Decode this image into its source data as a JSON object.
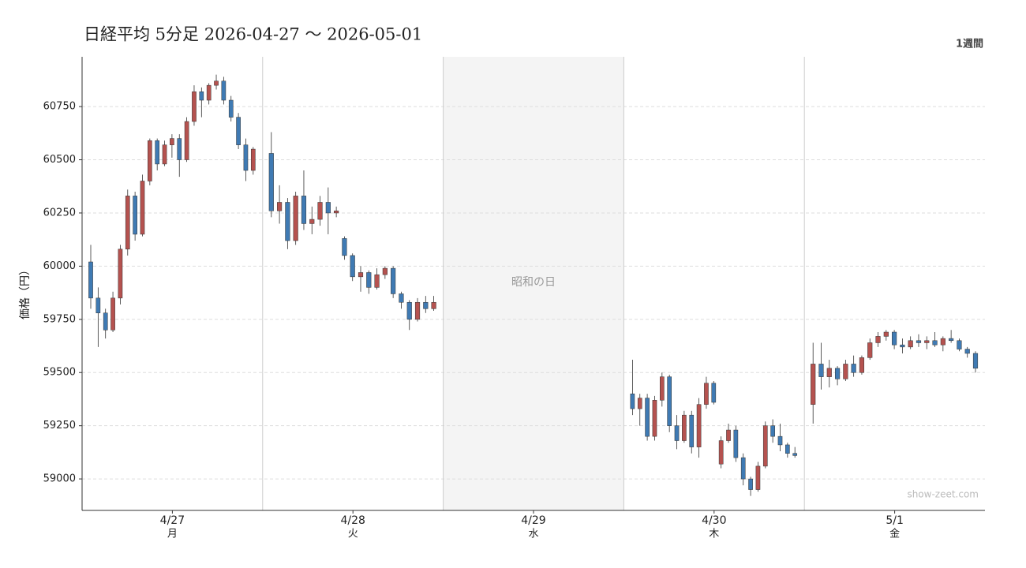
{
  "chart_data": {
    "type": "candlestick",
    "title": "日経平均 5分足  2026-04-27 〜 2026-05-01",
    "period": "1週間",
    "ylabel": "価格（円）",
    "watermark": "show-zeet.com",
    "ylim": [
      58852,
      60984
    ],
    "yticks": [
      59000,
      59250,
      59500,
      59750,
      60000,
      60250,
      60500,
      60750
    ],
    "grid": true,
    "up_color": "#b5524f",
    "down_color": "#3f7ab3",
    "days": [
      {
        "label": "4/27",
        "weekday": "月",
        "candles": {
          "open": [
            60020,
            59850,
            59780,
            59700,
            59850,
            60080,
            60330,
            60150,
            60400,
            60590,
            60480,
            60570,
            60600,
            60500,
            60680,
            60820,
            60780,
            60850,
            60870,
            60780,
            60700,
            60570,
            60450
          ],
          "high": [
            60100,
            59900,
            59800,
            59880,
            60100,
            60360,
            60350,
            60430,
            60600,
            60600,
            60590,
            60620,
            60620,
            60700,
            60850,
            60840,
            60860,
            60900,
            60890,
            60800,
            60720,
            60600,
            60560
          ],
          "low": [
            59800,
            59620,
            59660,
            59690,
            59820,
            60050,
            60120,
            60140,
            60380,
            60450,
            60470,
            60510,
            60420,
            60490,
            60660,
            60700,
            60760,
            60830,
            60760,
            60680,
            60550,
            60400,
            60430
          ],
          "close": [
            59850,
            59780,
            59700,
            59850,
            60080,
            60330,
            60150,
            60400,
            60590,
            60480,
            60570,
            60600,
            60500,
            60680,
            60820,
            60780,
            60850,
            60870,
            60780,
            60700,
            60570,
            60450,
            60550
          ]
        }
      },
      {
        "label": "4/28",
        "weekday": "火",
        "candles": {
          "open": [
            60530,
            60260,
            60300,
            60120,
            60330,
            60200,
            60220,
            60300,
            60250,
            60130,
            60050,
            59950,
            59970,
            59900,
            59960,
            59990,
            59870,
            59830,
            59750,
            59830,
            59800
          ],
          "high": [
            60630,
            60380,
            60320,
            60350,
            60450,
            60280,
            60330,
            60370,
            60280,
            60140,
            60060,
            60000,
            59980,
            59990,
            60000,
            60000,
            59880,
            59840,
            59850,
            59860,
            59860
          ],
          "low": [
            60230,
            60200,
            60080,
            60100,
            60170,
            60150,
            60190,
            60150,
            60230,
            60030,
            59930,
            59880,
            59870,
            59890,
            59940,
            59850,
            59800,
            59700,
            59740,
            59780,
            59790
          ],
          "close": [
            60260,
            60300,
            60120,
            60330,
            60200,
            60220,
            60300,
            60250,
            60260,
            60050,
            59950,
            59970,
            59900,
            59960,
            59990,
            59870,
            59830,
            59750,
            59830,
            59800,
            59830
          ]
        }
      },
      {
        "label": "4/29",
        "weekday": "水",
        "holiday": "昭和の日"
      },
      {
        "label": "4/30",
        "weekday": "木",
        "candles": {
          "open": [
            59400,
            59330,
            59380,
            59200,
            59370,
            59480,
            59250,
            59180,
            59300,
            59150,
            59350,
            59450,
            59070,
            59180,
            59230,
            59100,
            59000,
            58950,
            59060,
            59250,
            59200,
            59160,
            59120
          ],
          "high": [
            59560,
            59400,
            59400,
            59390,
            59500,
            59490,
            59300,
            59320,
            59320,
            59380,
            59480,
            59460,
            59200,
            59260,
            59250,
            59120,
            59010,
            59080,
            59270,
            59280,
            59260,
            59170,
            59150
          ],
          "low": [
            59300,
            59250,
            59180,
            59180,
            59340,
            59220,
            59140,
            59170,
            59120,
            59100,
            59330,
            59350,
            59050,
            59170,
            59080,
            58970,
            58920,
            58940,
            59050,
            59170,
            59130,
            59100,
            59100
          ],
          "close": [
            59330,
            59380,
            59200,
            59370,
            59480,
            59250,
            59180,
            59300,
            59150,
            59350,
            59450,
            59360,
            59180,
            59230,
            59100,
            59000,
            58950,
            59060,
            59250,
            59200,
            59160,
            59120,
            59110
          ]
        }
      },
      {
        "label": "5/1",
        "weekday": "金",
        "candles": {
          "open": [
            59350,
            59540,
            59480,
            59520,
            59470,
            59540,
            59500,
            59570,
            59640,
            59670,
            59690,
            59630,
            59620,
            59650,
            59640,
            59650,
            59630,
            59660,
            59650,
            59610,
            59590
          ],
          "high": [
            59640,
            59640,
            59560,
            59530,
            59560,
            59580,
            59580,
            59660,
            59690,
            59700,
            59700,
            59660,
            59670,
            59680,
            59670,
            59690,
            59670,
            59700,
            59660,
            59620,
            59600
          ],
          "low": [
            59260,
            59420,
            59430,
            59440,
            59460,
            59480,
            59490,
            59560,
            59620,
            59650,
            59610,
            59590,
            59610,
            59620,
            59610,
            59620,
            59600,
            59640,
            59600,
            59570,
            59500
          ],
          "close": [
            59540,
            59480,
            59520,
            59470,
            59540,
            59500,
            59570,
            59640,
            59670,
            59690,
            59630,
            59620,
            59650,
            59640,
            59650,
            59630,
            59660,
            59650,
            59610,
            59590,
            59520
          ]
        }
      }
    ]
  }
}
